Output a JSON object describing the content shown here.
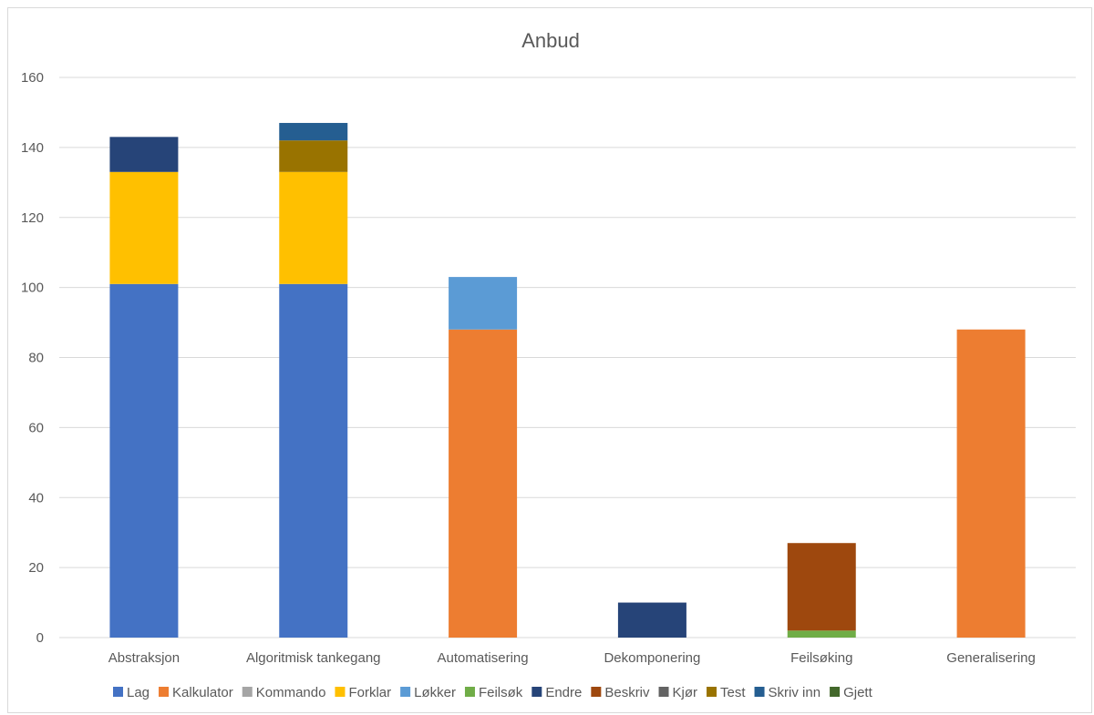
{
  "chart_data": {
    "type": "bar",
    "stacked": true,
    "title": "Anbud",
    "xlabel": "",
    "ylabel": "",
    "ylim": [
      0,
      160
    ],
    "yticks": [
      0,
      20,
      40,
      60,
      80,
      100,
      120,
      140,
      160
    ],
    "grid": true,
    "legend_position": "bottom",
    "categories": [
      "Abstraksjon",
      "Algoritmisk tankegang",
      "Automatisering",
      "Dekomponering",
      "Feilsøking",
      "Generalisering"
    ],
    "series": [
      {
        "name": "Lag",
        "color": "#4472C4",
        "values": [
          101,
          101,
          0,
          0,
          0,
          0
        ]
      },
      {
        "name": "Kalkulator",
        "color": "#ED7D31",
        "values": [
          0,
          0,
          88,
          0,
          0,
          88
        ]
      },
      {
        "name": "Kommando",
        "color": "#A5A5A5",
        "values": [
          0,
          0,
          0,
          0,
          0,
          0
        ]
      },
      {
        "name": "Forklar",
        "color": "#FFC000",
        "values": [
          32,
          32,
          0,
          0,
          0,
          0
        ]
      },
      {
        "name": "Løkker",
        "color": "#5B9BD5",
        "values": [
          0,
          0,
          15,
          0,
          0,
          0
        ]
      },
      {
        "name": "Feilsøk",
        "color": "#70AD47",
        "values": [
          0,
          0,
          0,
          0,
          2,
          0
        ]
      },
      {
        "name": "Endre",
        "color": "#264478",
        "values": [
          10,
          0,
          0,
          10,
          0,
          0
        ]
      },
      {
        "name": "Beskriv",
        "color": "#9E480E",
        "values": [
          0,
          0,
          0,
          0,
          25,
          0
        ]
      },
      {
        "name": "Kjør",
        "color": "#636363",
        "values": [
          0,
          0,
          0,
          0,
          0,
          0
        ]
      },
      {
        "name": "Test",
        "color": "#997300",
        "values": [
          0,
          9,
          0,
          0,
          0,
          0
        ]
      },
      {
        "name": "Skriv inn",
        "color": "#255E91",
        "values": [
          0,
          5,
          0,
          0,
          0,
          0
        ]
      },
      {
        "name": "Gjett",
        "color": "#43682B",
        "values": [
          0,
          0,
          0,
          0,
          0,
          0
        ]
      }
    ]
  }
}
